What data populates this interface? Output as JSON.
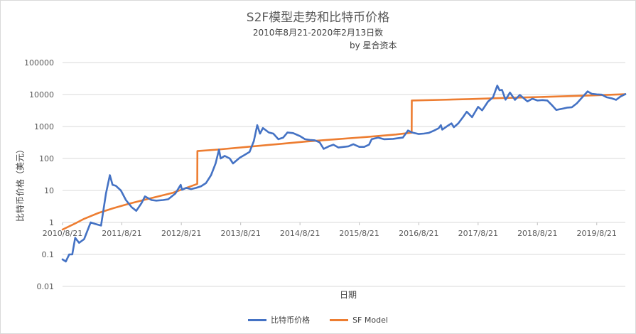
{
  "chart_data": {
    "type": "line",
    "title": "S2F模型走势和比特币价格",
    "subtitle": "2010年8月21-2020年2月13日数",
    "byline": "by 星合资本",
    "xlabel": "日期",
    "ylabel": "比特币价格（美元）",
    "y_scale": "log",
    "ylim": [
      0.01,
      100000
    ],
    "y_ticks": [
      "0.01",
      "0.1",
      "1",
      "10",
      "100",
      "1000",
      "10000",
      "100000"
    ],
    "xlim": [
      "2010-08-21",
      "2020-02-13"
    ],
    "x_ticks": [
      "2010/8/21",
      "2011/8/21",
      "2012/8/21",
      "2013/8/21",
      "2014/8/21",
      "2015/8/21",
      "2016/8/21",
      "2017/8/21",
      "2018/8/21",
      "2019/8/21"
    ],
    "grid": true,
    "legend_position": "bottom",
    "series": [
      {
        "name": "比特币价格",
        "color": "#4472c4",
        "points": [
          [
            "2010-08-21",
            0.07
          ],
          [
            "2010-09-10",
            0.06
          ],
          [
            "2010-10-01",
            0.1
          ],
          [
            "2010-10-20",
            0.1
          ],
          [
            "2010-11-07",
            0.33
          ],
          [
            "2010-12-01",
            0.23
          ],
          [
            "2011-01-01",
            0.3
          ],
          [
            "2011-02-10",
            1.0
          ],
          [
            "2011-03-10",
            0.9
          ],
          [
            "2011-04-15",
            0.8
          ],
          [
            "2011-05-15",
            8.0
          ],
          [
            "2011-06-08",
            30.0
          ],
          [
            "2011-06-25",
            15.0
          ],
          [
            "2011-07-15",
            14.0
          ],
          [
            "2011-08-15",
            10.0
          ],
          [
            "2011-09-15",
            5.0
          ],
          [
            "2011-10-20",
            3.0
          ],
          [
            "2011-11-18",
            2.3
          ],
          [
            "2011-12-20",
            4.0
          ],
          [
            "2012-01-10",
            6.5
          ],
          [
            "2012-02-20",
            5.0
          ],
          [
            "2012-03-20",
            4.8
          ],
          [
            "2012-05-01",
            5.0
          ],
          [
            "2012-06-01",
            5.3
          ],
          [
            "2012-07-15",
            8.0
          ],
          [
            "2012-08-17",
            15.0
          ],
          [
            "2012-08-25",
            10.5
          ],
          [
            "2012-09-20",
            12.0
          ],
          [
            "2012-10-20",
            11.0
          ],
          [
            "2012-11-20",
            12.0
          ],
          [
            "2012-12-20",
            13.5
          ],
          [
            "2013-01-20",
            17.0
          ],
          [
            "2013-02-20",
            30.0
          ],
          [
            "2013-03-20",
            70.0
          ],
          [
            "2013-04-10",
            190.0
          ],
          [
            "2013-04-20",
            100.0
          ],
          [
            "2013-05-15",
            120.0
          ],
          [
            "2013-06-15",
            100.0
          ],
          [
            "2013-07-05",
            70.0
          ],
          [
            "2013-08-15",
            105.0
          ],
          [
            "2013-09-15",
            130.0
          ],
          [
            "2013-10-15",
            160.0
          ],
          [
            "2013-11-10",
            350.0
          ],
          [
            "2013-12-01",
            1100.0
          ],
          [
            "2013-12-18",
            600.0
          ],
          [
            "2014-01-05",
            900.0
          ],
          [
            "2014-02-10",
            650.0
          ],
          [
            "2014-03-10",
            600.0
          ],
          [
            "2014-04-10",
            400.0
          ],
          [
            "2014-05-10",
            450.0
          ],
          [
            "2014-06-05",
            650.0
          ],
          [
            "2014-07-10",
            620.0
          ],
          [
            "2014-08-21",
            500.0
          ],
          [
            "2014-09-21",
            400.0
          ],
          [
            "2014-10-20",
            380.0
          ],
          [
            "2014-11-20",
            370.0
          ],
          [
            "2014-12-20",
            320.0
          ],
          [
            "2015-01-14",
            200.0
          ],
          [
            "2015-02-15",
            240.0
          ],
          [
            "2015-03-15",
            270.0
          ],
          [
            "2015-04-15",
            220.0
          ],
          [
            "2015-06-15",
            240.0
          ],
          [
            "2015-07-15",
            280.0
          ],
          [
            "2015-08-21",
            230.0
          ],
          [
            "2015-09-20",
            230.0
          ],
          [
            "2015-10-20",
            270.0
          ],
          [
            "2015-11-05",
            400.0
          ],
          [
            "2015-12-15",
            450.0
          ],
          [
            "2016-01-20",
            400.0
          ],
          [
            "2016-03-15",
            410.0
          ],
          [
            "2016-05-15",
            450.0
          ],
          [
            "2016-06-16",
            750.0
          ],
          [
            "2016-07-10",
            650.0
          ],
          [
            "2016-08-21",
            580.0
          ],
          [
            "2016-09-21",
            600.0
          ],
          [
            "2016-10-21",
            630.0
          ],
          [
            "2016-11-21",
            740.0
          ],
          [
            "2016-12-21",
            880.0
          ],
          [
            "2017-01-04",
            1100.0
          ],
          [
            "2017-01-12",
            800.0
          ],
          [
            "2017-02-21",
            1100.0
          ],
          [
            "2017-03-10",
            1250.0
          ],
          [
            "2017-03-25",
            950.0
          ],
          [
            "2017-04-21",
            1250.0
          ],
          [
            "2017-05-21",
            2000.0
          ],
          [
            "2017-06-12",
            2900.0
          ],
          [
            "2017-07-15",
            1950.0
          ],
          [
            "2017-08-21",
            4100.0
          ],
          [
            "2017-09-15",
            3200.0
          ],
          [
            "2017-10-21",
            6000.0
          ],
          [
            "2017-11-21",
            8200.0
          ],
          [
            "2017-12-17",
            19000.0
          ],
          [
            "2017-12-31",
            13500.0
          ],
          [
            "2018-01-15",
            14000.0
          ],
          [
            "2018-02-06",
            6900.0
          ],
          [
            "2018-03-05",
            11500.0
          ],
          [
            "2018-04-05",
            6800.0
          ],
          [
            "2018-05-05",
            9700.0
          ],
          [
            "2018-06-21",
            6100.0
          ],
          [
            "2018-07-21",
            7400.0
          ],
          [
            "2018-08-21",
            6500.0
          ],
          [
            "2018-09-21",
            6700.0
          ],
          [
            "2018-10-21",
            6500.0
          ],
          [
            "2018-11-21",
            4500.0
          ],
          [
            "2018-12-15",
            3300.0
          ],
          [
            "2019-01-21",
            3600.0
          ],
          [
            "2019-02-21",
            3900.0
          ],
          [
            "2019-03-21",
            4000.0
          ],
          [
            "2019-04-21",
            5300.0
          ],
          [
            "2019-05-21",
            7900.0
          ],
          [
            "2019-06-26",
            12500.0
          ],
          [
            "2019-07-21",
            10500.0
          ],
          [
            "2019-08-21",
            10100.0
          ],
          [
            "2019-09-21",
            9900.0
          ],
          [
            "2019-10-21",
            8200.0
          ],
          [
            "2019-11-21",
            7600.0
          ],
          [
            "2019-12-18",
            6800.0
          ],
          [
            "2020-01-15",
            8700.0
          ],
          [
            "2020-02-13",
            10300.0
          ]
        ]
      },
      {
        "name": "SF Model",
        "color": "#ed7d31",
        "points": [
          [
            "2010-08-21",
            0.6
          ],
          [
            "2010-11-01",
            0.9
          ],
          [
            "2011-01-01",
            1.3
          ],
          [
            "2011-04-01",
            2.0
          ],
          [
            "2011-07-01",
            2.8
          ],
          [
            "2011-10-01",
            3.8
          ],
          [
            "2012-01-01",
            5.0
          ],
          [
            "2012-04-01",
            6.5
          ],
          [
            "2012-07-01",
            8.5
          ],
          [
            "2012-11-27",
            16.0
          ],
          [
            "2012-11-28",
            170.0
          ],
          [
            "2013-04-01",
            190.0
          ],
          [
            "2013-10-01",
            230.0
          ],
          [
            "2014-04-01",
            280.0
          ],
          [
            "2014-10-01",
            340.0
          ],
          [
            "2015-04-01",
            400.0
          ],
          [
            "2015-10-01",
            470.0
          ],
          [
            "2016-04-01",
            560.0
          ],
          [
            "2016-07-08",
            640.0
          ],
          [
            "2016-07-09",
            6500.0
          ],
          [
            "2017-01-01",
            6800.0
          ],
          [
            "2017-07-01",
            7200.0
          ],
          [
            "2018-01-01",
            7700.0
          ],
          [
            "2018-07-01",
            8200.0
          ],
          [
            "2019-01-01",
            8700.0
          ],
          [
            "2019-07-01",
            9300.0
          ],
          [
            "2020-02-13",
            10200.0
          ]
        ]
      }
    ]
  }
}
